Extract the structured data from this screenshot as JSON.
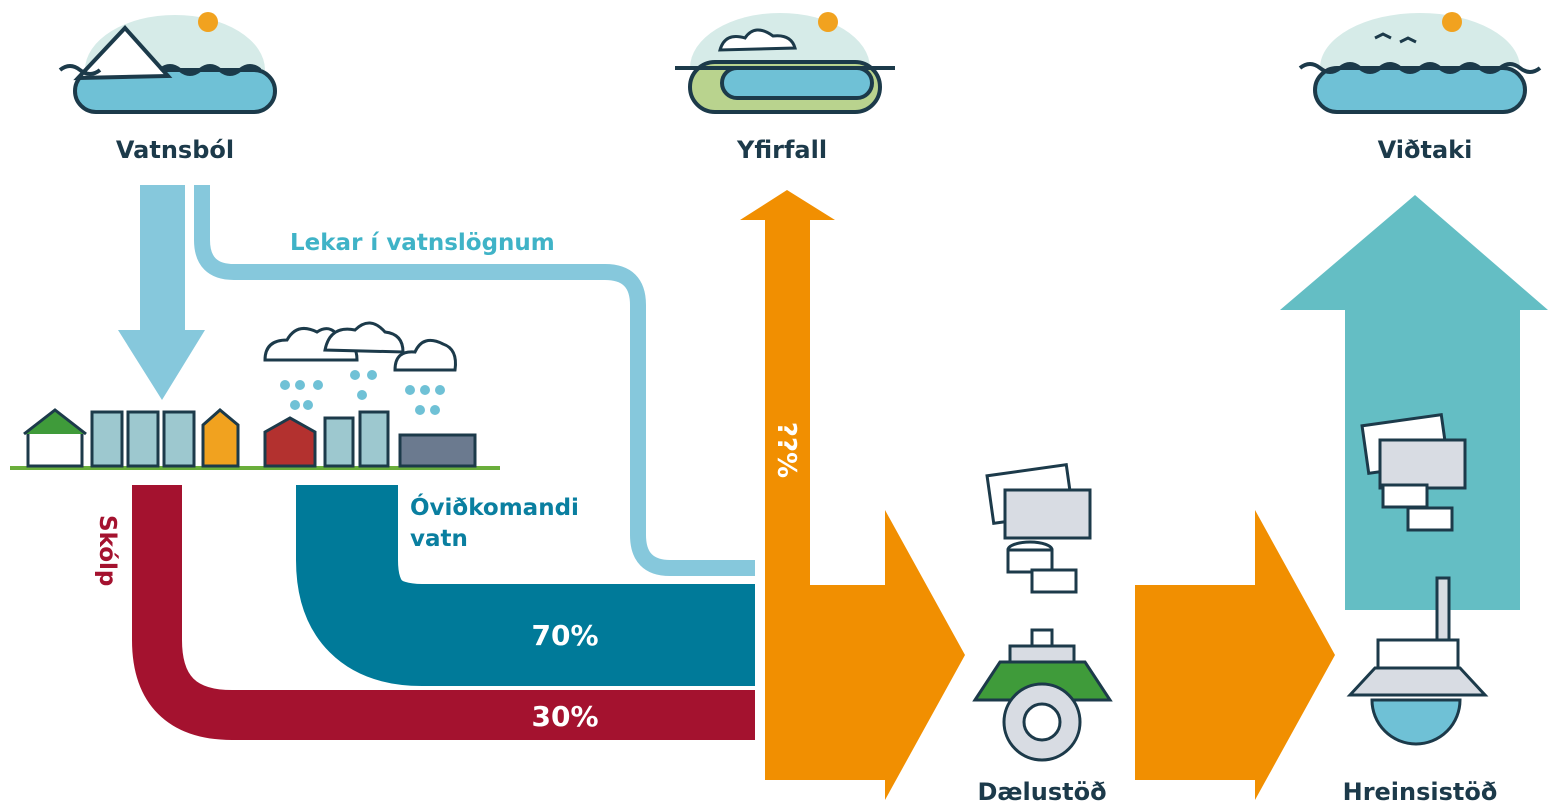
{
  "nodes": [
    {
      "label": "Vatnsból"
    },
    {
      "label": "Yfirfall"
    },
    {
      "label": "Viðtaki"
    },
    {
      "label": "Dælustöð"
    },
    {
      "label": "Hreinsistöð"
    }
  ],
  "flows": [
    {
      "label": "Lekar í vatnslögnum"
    },
    {
      "label": "Óviðkomandi vatn",
      "lines": [
        "Óviðkomandi",
        "vatn"
      ],
      "share": "70%"
    },
    {
      "label": "Skólp",
      "share": "30%"
    },
    {
      "label": "Yfirfall",
      "share": "??%"
    }
  ]
}
